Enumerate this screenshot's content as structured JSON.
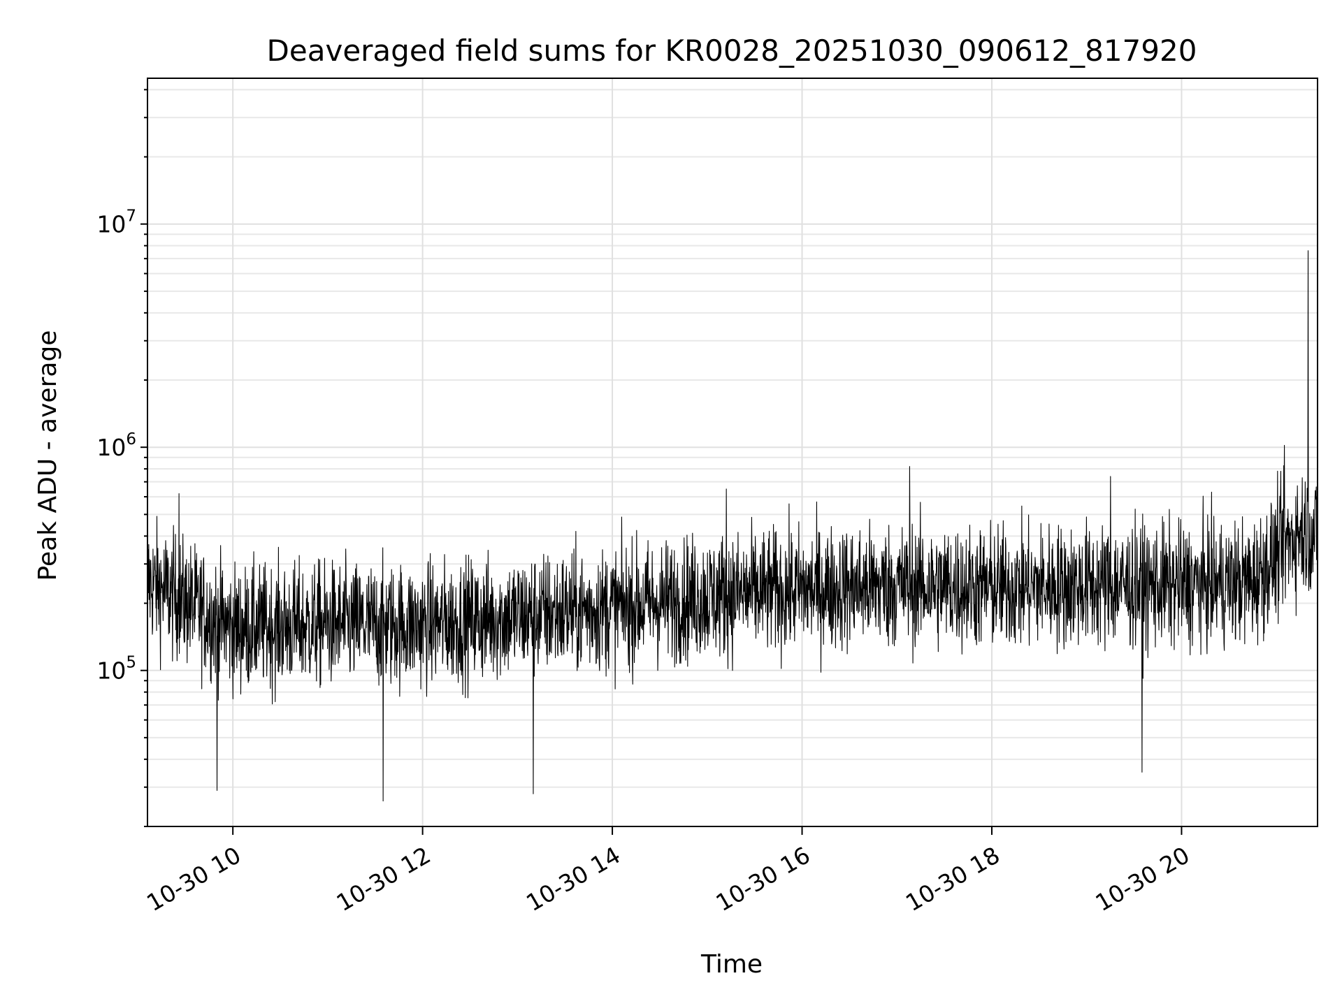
{
  "chart_data": {
    "type": "line",
    "title": "Deaveraged field sums for KR0028_20251030_090612_817920",
    "xlabel": "Time",
    "ylabel": "Peak ADU - average",
    "yscale": "log",
    "xlim": [
      "10-30 09:06",
      "10-30 21:26"
    ],
    "ylim": [
      20000,
      45000000
    ],
    "grid": true,
    "x_ticks": [
      "10-30 10",
      "10-30 12",
      "10-30 14",
      "10-30 16",
      "10-30 18",
      "10-30 20"
    ],
    "y_ticks": [
      {
        "base": "10",
        "exp": "5",
        "value": 100000
      },
      {
        "base": "10",
        "exp": "6",
        "value": 1000000
      },
      {
        "base": "10",
        "exp": "7",
        "value": 10000000
      }
    ],
    "line_color": "#000000",
    "series": [
      {
        "x": [
          "10-30 09:06",
          "10-30 10:00",
          "10-30 11:00",
          "10-30 12:00",
          "10-30 13:00",
          "10-30 14:00",
          "10-30 15:00",
          "10-30 16:00",
          "10-30 17:00",
          "10-30 18:00",
          "10-30 19:00",
          "10-30 20:00",
          "10-30 20:45",
          "10-30 21:15",
          "10-30 21:26"
        ],
        "values": [
          250000,
          155000,
          160000,
          160000,
          175000,
          190000,
          215000,
          230000,
          240000,
          235000,
          240000,
          240000,
          250000,
          430000,
          400000
        ]
      }
    ],
    "peaks": [
      {
        "x": "10-30 09:26",
        "value": 620000
      },
      {
        "x": "10-30 09:50",
        "value": 29000
      },
      {
        "x": "10-30 11:35",
        "value": 26000
      },
      {
        "x": "10-30 13:10",
        "value": 28000
      },
      {
        "x": "10-30 15:12",
        "value": 650000
      },
      {
        "x": "10-30 17:08",
        "value": 820000
      },
      {
        "x": "10-30 19:15",
        "value": 740000
      },
      {
        "x": "10-30 19:35",
        "value": 35000
      },
      {
        "x": "10-30 21:05",
        "value": 1020000
      },
      {
        "x": "10-30 21:20",
        "value": 7600000
      }
    ]
  }
}
